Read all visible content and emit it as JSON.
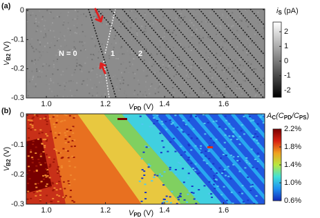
{
  "chart_data": [
    {
      "type": "heatmap",
      "panel_label": "(a)",
      "xlabel": [
        "V",
        "PD",
        " (V)"
      ],
      "ylabel": [
        "V",
        "B2",
        " (V)"
      ],
      "xlim": [
        0.932,
        1.739
      ],
      "ylim": [
        -0.3,
        0.005
      ],
      "xticks": [
        {
          "value": 1,
          "label": "1.0"
        },
        1.2,
        1.4,
        1.6
      ],
      "yticks": [
        0,
        -0.1,
        -0.2,
        -0.3
      ],
      "colorbar": {
        "label": [
          "i",
          "S",
          " (pA)"
        ],
        "clim": [
          -2.47,
          2.66
        ],
        "ticks": [
          2,
          1,
          0,
          -1,
          -2
        ],
        "colors": [
          "#000000",
          "#ffffff"
        ]
      },
      "annotations": [
        "N = 0",
        "1",
        "2"
      ]
    },
    {
      "type": "heatmap",
      "panel_label": "(b)",
      "xlabel": [
        "V",
        "PD",
        " (V)"
      ],
      "ylabel": [
        "V",
        "B2",
        " (V)"
      ],
      "xlim": [
        0.932,
        1.739
      ],
      "ylim": [
        -0.3,
        0.005
      ],
      "xticks": [
        {
          "value": 1,
          "label": "1.0"
        },
        1.2,
        1.4,
        1.6
      ],
      "yticks": [
        0,
        -0.1,
        -0.2,
        -0.3
      ],
      "colorbar": {
        "label": [
          "A",
          "C",
          "(C",
          "PD",
          "/C",
          "PS",
          ")"
        ],
        "clim": [
          0.6,
          2.2
        ],
        "ticks": [
          {
            "value": 2.2,
            "label": "2.2%"
          },
          {
            "value": 1.8,
            "label": "1.8%"
          },
          {
            "value": 1.4,
            "label": "1.4%"
          },
          {
            "value": 1,
            "label": "1.0%"
          },
          {
            "value": 0.6,
            "label": "0.6%"
          }
        ],
        "colors": [
          "#1028b8",
          "#1e90f0",
          "#40e0d8",
          "#b8e840",
          "#f0a020",
          "#d82010",
          "#780000"
        ]
      }
    }
  ]
}
